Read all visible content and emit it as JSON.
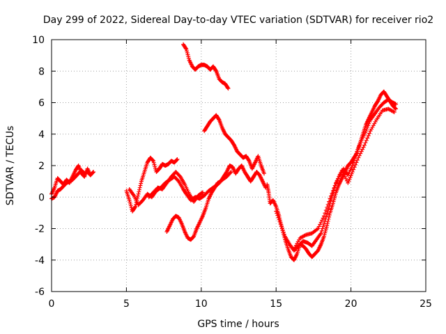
{
  "chart_data": {
    "type": "scatter",
    "title": "Day 299 of 2022, Sidereal Day-to-day VTEC variation (SDTVAR) for receiver rio2",
    "xlabel": "GPS time / hours",
    "ylabel": "SDTVAR / TECUs",
    "xlim": [
      0,
      25
    ],
    "ylim": [
      -6,
      10
    ],
    "xticks": [
      0,
      5,
      10,
      15,
      20,
      25
    ],
    "yticks": [
      -6,
      -4,
      -2,
      0,
      2,
      4,
      6,
      8,
      10
    ],
    "grid": true,
    "marker": "+",
    "color": "#ff0000",
    "series": [
      {
        "points": [
          [
            0.0,
            0.2
          ],
          [
            0.2,
            0.6
          ],
          [
            0.4,
            1.2
          ],
          [
            0.6,
            1.0
          ],
          [
            0.8,
            0.8
          ],
          [
            1.0,
            1.1
          ],
          [
            1.2,
            0.9
          ],
          [
            1.4,
            1.3
          ],
          [
            1.6,
            1.7
          ],
          [
            1.8,
            2.0
          ],
          [
            2.0,
            1.5
          ],
          [
            2.2,
            1.3
          ],
          [
            2.4,
            1.8
          ],
          [
            2.6,
            1.4
          ],
          [
            2.8,
            1.6
          ]
        ]
      },
      {
        "points": [
          [
            0.0,
            -0.1
          ],
          [
            0.2,
            0.0
          ],
          [
            0.4,
            0.4
          ],
          [
            0.6,
            0.5
          ],
          [
            0.8,
            0.7
          ],
          [
            1.0,
            0.9
          ],
          [
            1.2,
            1.0
          ],
          [
            1.4,
            1.1
          ],
          [
            1.6,
            1.3
          ],
          [
            1.8,
            1.5
          ],
          [
            2.0,
            1.7
          ],
          [
            2.2,
            1.5
          ],
          [
            2.4,
            1.6
          ],
          [
            2.6,
            1.4
          ]
        ]
      },
      {
        "points": [
          [
            5.0,
            0.4
          ],
          [
            5.2,
            -0.2
          ],
          [
            5.4,
            -0.9
          ],
          [
            5.6,
            -0.6
          ],
          [
            5.8,
            0.2
          ],
          [
            6.0,
            1.0
          ],
          [
            6.2,
            1.6
          ],
          [
            6.4,
            2.2
          ],
          [
            6.6,
            2.5
          ],
          [
            6.8,
            2.3
          ],
          [
            7.0,
            1.6
          ],
          [
            7.2,
            1.8
          ],
          [
            7.4,
            2.1
          ],
          [
            7.6,
            2.0
          ],
          [
            7.8,
            2.1
          ],
          [
            8.0,
            2.3
          ],
          [
            8.2,
            2.2
          ],
          [
            8.4,
            2.4
          ]
        ]
      },
      {
        "points": [
          [
            5.2,
            0.5
          ],
          [
            5.5,
            0.1
          ],
          [
            5.8,
            -0.5
          ],
          [
            6.1,
            -0.2
          ],
          [
            6.4,
            0.2
          ],
          [
            6.7,
            0.0
          ],
          [
            7.0,
            0.4
          ],
          [
            7.3,
            0.6
          ],
          [
            7.6,
            0.9
          ],
          [
            7.9,
            1.1
          ],
          [
            8.2,
            1.3
          ],
          [
            8.5,
            1.0
          ],
          [
            8.8,
            0.5
          ],
          [
            9.0,
            0.2
          ],
          [
            9.3,
            -0.2
          ],
          [
            9.6,
            0.0
          ],
          [
            9.9,
            -0.1
          ],
          [
            10.2,
            0.1
          ],
          [
            10.5,
            0.4
          ],
          [
            10.8,
            0.6
          ],
          [
            11.1,
            0.8
          ],
          [
            11.4,
            1.1
          ],
          [
            11.7,
            1.3
          ],
          [
            12.0,
            1.6
          ]
        ]
      },
      {
        "points": [
          [
            7.7,
            -2.2
          ],
          [
            7.9,
            -1.8
          ],
          [
            8.1,
            -1.4
          ],
          [
            8.3,
            -1.2
          ],
          [
            8.5,
            -1.3
          ],
          [
            8.7,
            -1.7
          ],
          [
            8.9,
            -2.2
          ],
          [
            9.1,
            -2.6
          ],
          [
            9.3,
            -2.7
          ],
          [
            9.5,
            -2.5
          ],
          [
            9.7,
            -2.0
          ],
          [
            9.9,
            -1.6
          ],
          [
            10.1,
            -1.2
          ],
          [
            10.3,
            -0.7
          ],
          [
            10.5,
            -0.1
          ],
          [
            10.7,
            0.3
          ],
          [
            10.9,
            0.6
          ],
          [
            11.1,
            0.9
          ],
          [
            11.3,
            1.0
          ],
          [
            11.5,
            1.3
          ],
          [
            11.7,
            1.6
          ],
          [
            11.9,
            2.0
          ],
          [
            12.1,
            1.9
          ],
          [
            12.3,
            1.5
          ],
          [
            12.5,
            1.8
          ],
          [
            12.7,
            2.0
          ],
          [
            12.9,
            1.6
          ],
          [
            13.1,
            1.3
          ],
          [
            13.3,
            1.0
          ],
          [
            13.5,
            1.3
          ],
          [
            13.7,
            1.6
          ],
          [
            13.9,
            1.4
          ],
          [
            14.1,
            1.0
          ],
          [
            14.3,
            0.6
          ]
        ]
      },
      {
        "points": [
          [
            6.5,
            0.0
          ],
          [
            6.8,
            0.3
          ],
          [
            7.1,
            0.6
          ],
          [
            7.4,
            0.5
          ],
          [
            7.7,
            0.9
          ],
          [
            8.0,
            1.3
          ],
          [
            8.3,
            1.6
          ],
          [
            8.6,
            1.3
          ],
          [
            8.9,
            0.8
          ],
          [
            9.2,
            0.2
          ],
          [
            9.5,
            -0.3
          ],
          [
            9.8,
            0.1
          ],
          [
            10.1,
            0.3
          ]
        ]
      },
      {
        "points": [
          [
            8.8,
            9.7
          ],
          [
            9.0,
            9.4
          ],
          [
            9.2,
            8.7
          ],
          [
            9.4,
            8.3
          ],
          [
            9.6,
            8.1
          ],
          [
            9.8,
            8.3
          ],
          [
            10.0,
            8.4
          ],
          [
            10.2,
            8.4
          ],
          [
            10.4,
            8.3
          ],
          [
            10.6,
            8.1
          ],
          [
            10.8,
            8.3
          ],
          [
            11.0,
            8.0
          ],
          [
            11.2,
            7.5
          ],
          [
            11.4,
            7.3
          ],
          [
            11.6,
            7.2
          ],
          [
            11.8,
            6.9
          ]
        ]
      },
      {
        "points": [
          [
            10.2,
            4.2
          ],
          [
            10.4,
            4.5
          ],
          [
            10.6,
            4.8
          ],
          [
            10.8,
            5.0
          ],
          [
            11.0,
            5.2
          ],
          [
            11.2,
            4.9
          ],
          [
            11.4,
            4.4
          ],
          [
            11.6,
            4.0
          ],
          [
            11.8,
            3.8
          ],
          [
            12.0,
            3.6
          ],
          [
            12.2,
            3.3
          ],
          [
            12.4,
            2.9
          ],
          [
            12.6,
            2.7
          ],
          [
            12.8,
            2.5
          ],
          [
            13.0,
            2.6
          ],
          [
            13.2,
            2.3
          ],
          [
            13.4,
            1.8
          ],
          [
            13.6,
            2.2
          ],
          [
            13.8,
            2.6
          ],
          [
            14.0,
            2.0
          ],
          [
            14.2,
            1.5
          ]
        ]
      },
      {
        "points": [
          [
            14.4,
            0.8
          ],
          [
            14.5,
            0.3
          ],
          [
            14.6,
            -0.4
          ],
          [
            14.8,
            -0.2
          ],
          [
            15.0,
            -0.6
          ],
          [
            15.2,
            -1.2
          ],
          [
            15.4,
            -2.0
          ],
          [
            15.6,
            -2.7
          ],
          [
            15.8,
            -3.3
          ],
          [
            16.0,
            -3.8
          ],
          [
            16.2,
            -4.0
          ],
          [
            16.4,
            -3.6
          ],
          [
            16.6,
            -3.0
          ],
          [
            16.8,
            -3.1
          ],
          [
            17.0,
            -3.3
          ],
          [
            17.2,
            -3.6
          ],
          [
            17.4,
            -3.8
          ],
          [
            17.6,
            -3.6
          ],
          [
            17.8,
            -3.4
          ],
          [
            18.0,
            -3.0
          ],
          [
            18.2,
            -2.5
          ],
          [
            18.4,
            -1.8
          ],
          [
            18.6,
            -1.0
          ],
          [
            18.8,
            -0.4
          ],
          [
            19.0,
            0.3
          ],
          [
            19.2,
            0.8
          ],
          [
            19.4,
            1.2
          ],
          [
            19.6,
            1.6
          ],
          [
            19.8,
            2.0
          ],
          [
            20.0,
            2.2
          ],
          [
            20.2,
            2.5
          ],
          [
            20.4,
            2.8
          ],
          [
            20.6,
            3.4
          ],
          [
            20.8,
            4.0
          ],
          [
            21.0,
            4.6
          ],
          [
            21.2,
            5.0
          ],
          [
            21.4,
            5.4
          ],
          [
            21.6,
            5.8
          ],
          [
            21.8,
            6.1
          ],
          [
            22.0,
            6.5
          ],
          [
            22.2,
            6.7
          ],
          [
            22.4,
            6.4
          ],
          [
            22.6,
            6.1
          ],
          [
            22.8,
            5.8
          ],
          [
            23.0,
            5.6
          ]
        ]
      },
      {
        "points": [
          [
            15.0,
            -0.9
          ],
          [
            15.3,
            -1.7
          ],
          [
            15.6,
            -2.5
          ],
          [
            15.9,
            -3.0
          ],
          [
            16.2,
            -3.4
          ],
          [
            16.5,
            -3.1
          ],
          [
            16.8,
            -2.8
          ],
          [
            17.1,
            -2.9
          ],
          [
            17.4,
            -3.1
          ],
          [
            17.7,
            -2.7
          ],
          [
            18.0,
            -2.3
          ],
          [
            18.3,
            -1.4
          ],
          [
            18.6,
            -0.4
          ],
          [
            18.9,
            0.6
          ],
          [
            19.2,
            1.3
          ],
          [
            19.5,
            1.8
          ],
          [
            19.8,
            1.4
          ],
          [
            20.1,
            2.0
          ],
          [
            20.4,
            2.9
          ],
          [
            20.7,
            3.6
          ],
          [
            21.0,
            4.2
          ],
          [
            21.3,
            4.9
          ],
          [
            21.6,
            5.3
          ],
          [
            21.9,
            5.7
          ],
          [
            22.2,
            6.0
          ],
          [
            22.5,
            6.2
          ],
          [
            22.8,
            6.0
          ],
          [
            23.0,
            5.9
          ]
        ]
      },
      {
        "points": [
          [
            16.2,
            -3.3
          ],
          [
            16.6,
            -2.6
          ],
          [
            17.0,
            -2.4
          ],
          [
            17.4,
            -2.3
          ],
          [
            17.8,
            -2.0
          ],
          [
            18.2,
            -1.2
          ],
          [
            18.6,
            -0.1
          ],
          [
            19.0,
            0.9
          ],
          [
            19.4,
            1.7
          ],
          [
            19.8,
            0.9
          ],
          [
            20.1,
            1.6
          ],
          [
            20.5,
            2.5
          ],
          [
            20.9,
            3.3
          ],
          [
            21.3,
            4.2
          ],
          [
            21.7,
            4.9
          ],
          [
            22.1,
            5.5
          ],
          [
            22.5,
            5.6
          ],
          [
            22.9,
            5.4
          ]
        ]
      }
    ]
  }
}
